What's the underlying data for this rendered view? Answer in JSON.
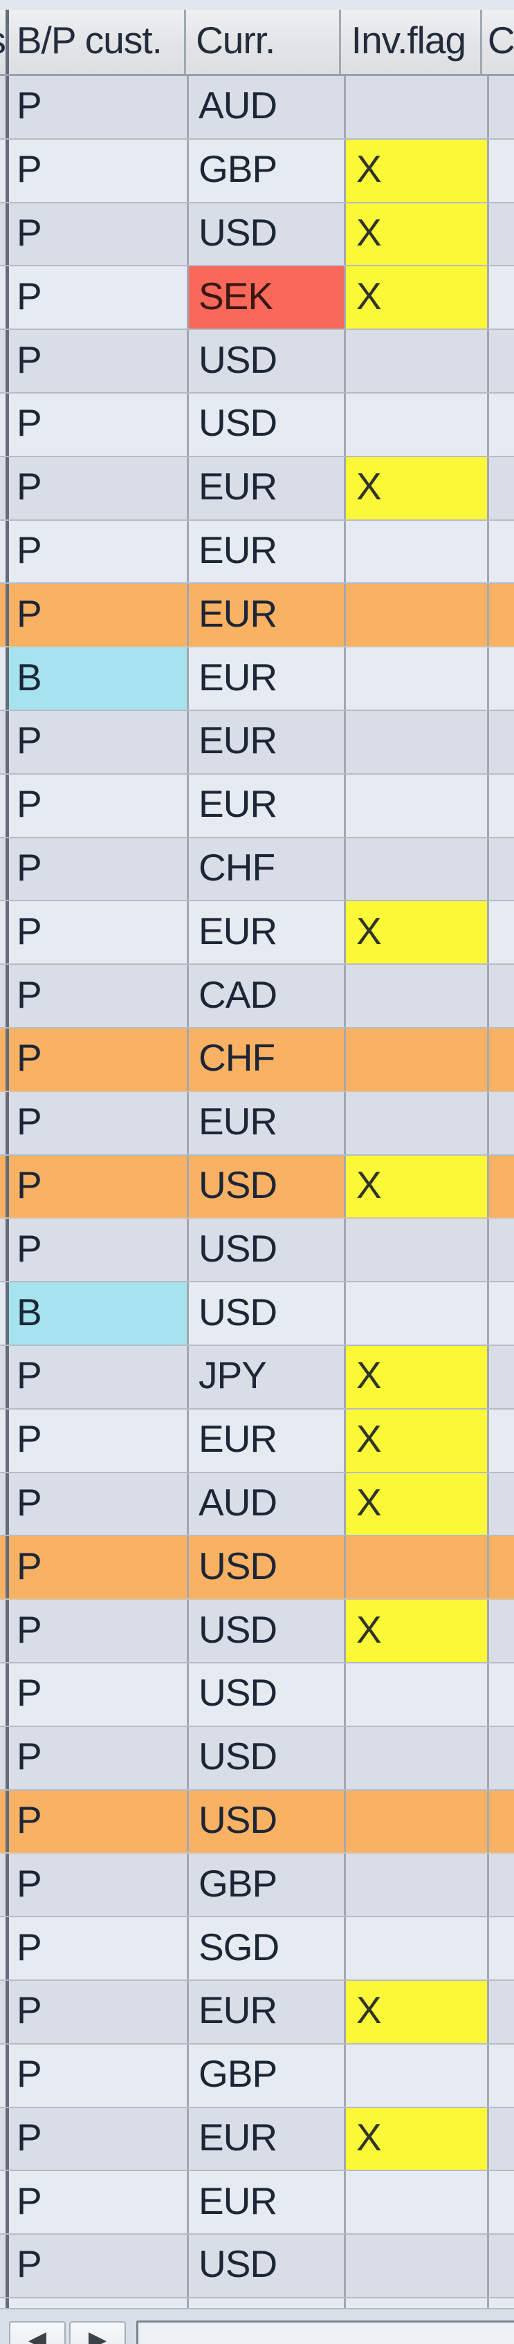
{
  "app": {
    "name": "invoice-grid"
  },
  "header": {
    "left_partial_label": "s",
    "columns": [
      {
        "label": "B/P cust."
      },
      {
        "label": "Curr."
      },
      {
        "label": "Inv.flag"
      },
      {
        "label": "C"
      }
    ]
  },
  "rows": [
    {
      "bp": "P",
      "curr": "AUD",
      "flag": ""
    },
    {
      "bp": "P",
      "curr": "GBP",
      "flag": "X"
    },
    {
      "bp": "P",
      "curr": "USD",
      "flag": "X"
    },
    {
      "bp": "P",
      "curr": "SEK",
      "flag": "X",
      "curr_red": true
    },
    {
      "bp": "P",
      "curr": "USD",
      "flag": ""
    },
    {
      "bp": "P",
      "curr": "USD",
      "flag": ""
    },
    {
      "bp": "P",
      "curr": "EUR",
      "flag": "X"
    },
    {
      "bp": "P",
      "curr": "EUR",
      "flag": ""
    },
    {
      "bp": "P",
      "curr": "EUR",
      "flag": "",
      "orange": true
    },
    {
      "bp": "B",
      "curr": "EUR",
      "flag": "",
      "bp_cyan": true
    },
    {
      "bp": "P",
      "curr": "EUR",
      "flag": ""
    },
    {
      "bp": "P",
      "curr": "EUR",
      "flag": ""
    },
    {
      "bp": "P",
      "curr": "CHF",
      "flag": ""
    },
    {
      "bp": "P",
      "curr": "EUR",
      "flag": "X"
    },
    {
      "bp": "P",
      "curr": "CAD",
      "flag": ""
    },
    {
      "bp": "P",
      "curr": "CHF",
      "flag": "",
      "orange": true
    },
    {
      "bp": "P",
      "curr": "EUR",
      "flag": ""
    },
    {
      "bp": "P",
      "curr": "USD",
      "flag": "X",
      "orange": true
    },
    {
      "bp": "P",
      "curr": "USD",
      "flag": ""
    },
    {
      "bp": "B",
      "curr": "USD",
      "flag": "",
      "bp_cyan": true
    },
    {
      "bp": "P",
      "curr": "JPY",
      "flag": "X"
    },
    {
      "bp": "P",
      "curr": "EUR",
      "flag": "X"
    },
    {
      "bp": "P",
      "curr": "AUD",
      "flag": "X"
    },
    {
      "bp": "P",
      "curr": "USD",
      "flag": "",
      "orange": true
    },
    {
      "bp": "P",
      "curr": "USD",
      "flag": "X"
    },
    {
      "bp": "P",
      "curr": "USD",
      "flag": ""
    },
    {
      "bp": "P",
      "curr": "USD",
      "flag": ""
    },
    {
      "bp": "P",
      "curr": "USD",
      "flag": "",
      "orange": true
    },
    {
      "bp": "P",
      "curr": "GBP",
      "flag": ""
    },
    {
      "bp": "P",
      "curr": "SGD",
      "flag": ""
    },
    {
      "bp": "P",
      "curr": "EUR",
      "flag": "X"
    },
    {
      "bp": "P",
      "curr": "GBP",
      "flag": ""
    },
    {
      "bp": "P",
      "curr": "EUR",
      "flag": "X"
    },
    {
      "bp": "P",
      "curr": "EUR",
      "flag": ""
    },
    {
      "bp": "P",
      "curr": "USD",
      "flag": ""
    }
  ],
  "scrollbar": {
    "left_arrow_icon": "◀",
    "right_arrow_icon": "▶"
  },
  "colors": {
    "row_dark": "#d9dde7",
    "row_light": "#e6ebf2",
    "orange": "#f9b164",
    "yellow": "#fbf838",
    "red": "#f8695a",
    "cyan": "#a5e3ee",
    "header_text": "#232c3d",
    "cell_text": "#1d2636"
  }
}
